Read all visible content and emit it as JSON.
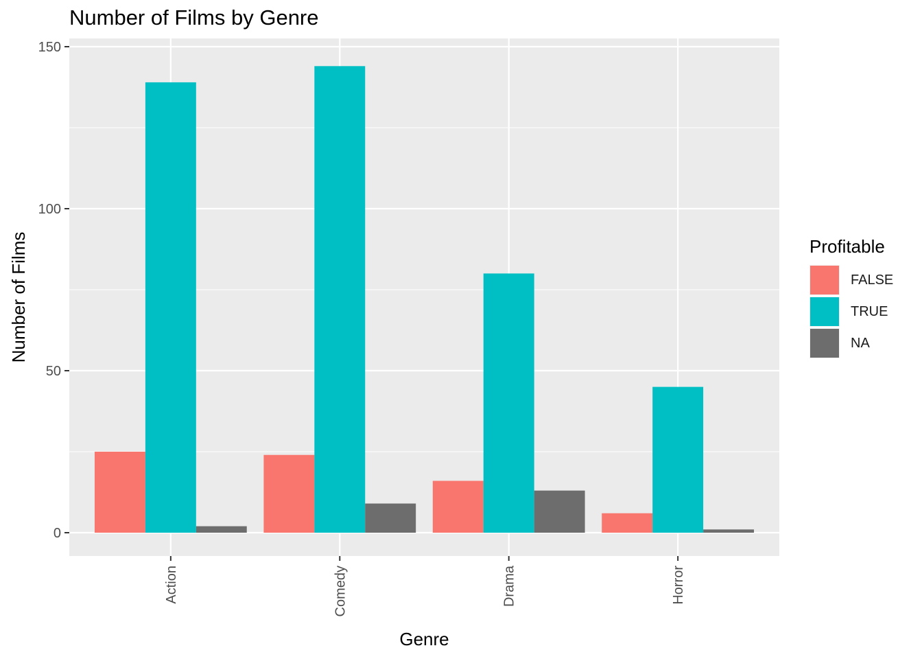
{
  "chart_data": {
    "type": "bar",
    "title": "Number of Films by Genre",
    "xlabel": "Genre",
    "ylabel": "Number of Films",
    "categories": [
      "Action",
      "Comedy",
      "Drama",
      "Horror"
    ],
    "ylim": [
      0,
      150
    ],
    "yticks": [
      0,
      50,
      100,
      150
    ],
    "yticks_labels": [
      "0",
      "50",
      "100",
      "150"
    ],
    "grid": true,
    "legend_title": "Profitable",
    "legend_position": "right",
    "series": [
      {
        "name": "FALSE",
        "color": "#F8766D",
        "values": [
          25,
          24,
          16,
          6
        ]
      },
      {
        "name": "TRUE",
        "color": "#00BFC4",
        "values": [
          139,
          144,
          80,
          45
        ]
      },
      {
        "name": "NA",
        "color": "#6D6D6D",
        "values": [
          2,
          9,
          13,
          1
        ]
      }
    ]
  }
}
